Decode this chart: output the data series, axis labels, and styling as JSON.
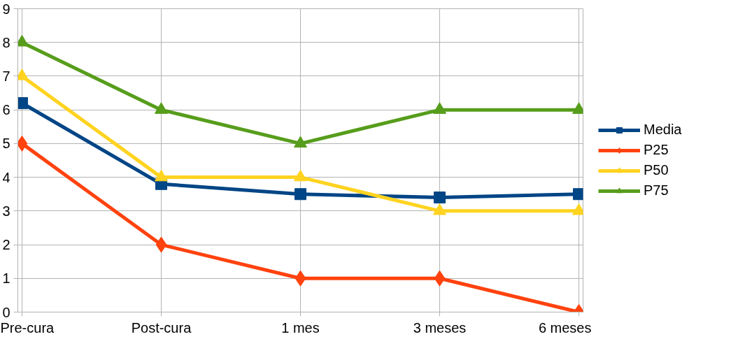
{
  "chart_data": {
    "type": "line",
    "categories": [
      "Pre-cura",
      "Post-cura",
      "1 mes",
      "3 meses",
      "6 meses"
    ],
    "ylim": [
      0,
      9
    ],
    "yticks": [
      0,
      1,
      2,
      3,
      4,
      5,
      6,
      7,
      8,
      9
    ],
    "grid": true,
    "legend": "right",
    "line_style": "solid",
    "series": [
      {
        "name": "Media",
        "color": "#004586",
        "marker": "square",
        "values": [
          6.2,
          3.8,
          3.5,
          3.4,
          3.5
        ]
      },
      {
        "name": "P25",
        "color": "#ff420e",
        "marker": "diamond",
        "values": [
          5,
          2,
          1,
          1,
          0
        ]
      },
      {
        "name": "P50",
        "color": "#ffd320",
        "marker": "triangle",
        "values": [
          7,
          4,
          4,
          3,
          3
        ]
      },
      {
        "name": "P75",
        "color": "#579d1c",
        "marker": "triangle",
        "values": [
          8,
          6,
          5,
          6,
          6
        ]
      }
    ]
  }
}
